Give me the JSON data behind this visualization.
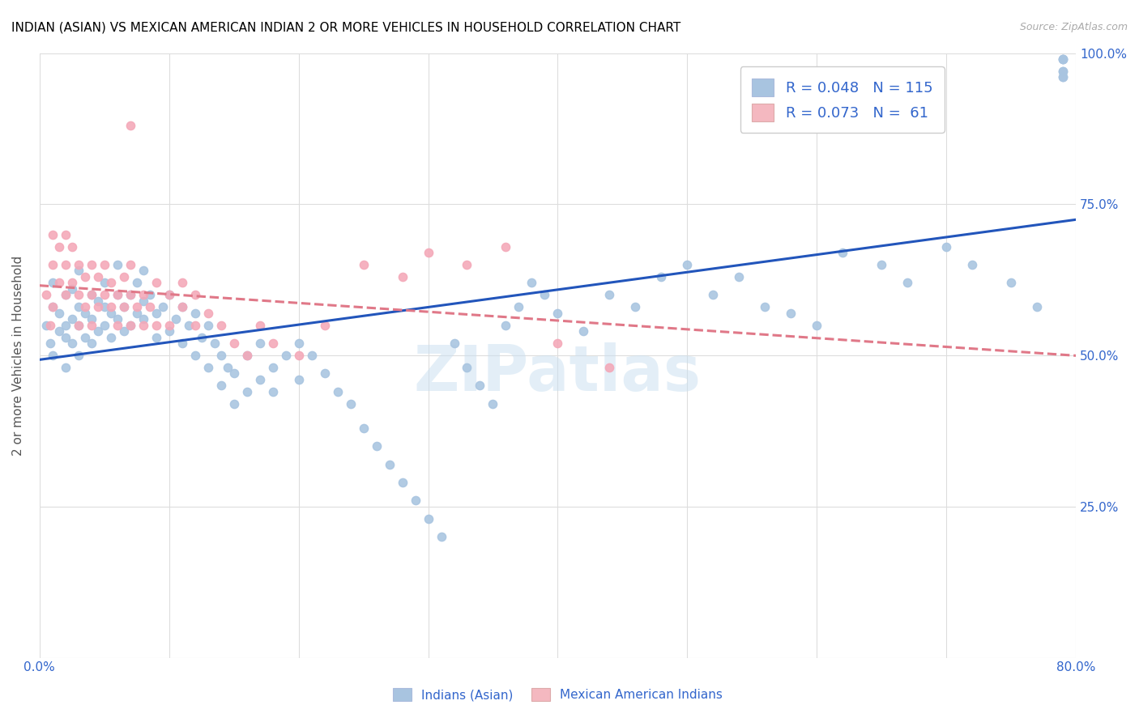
{
  "title": "INDIAN (ASIAN) VS MEXICAN AMERICAN INDIAN 2 OR MORE VEHICLES IN HOUSEHOLD CORRELATION CHART",
  "source": "Source: ZipAtlas.com",
  "ylabel": "2 or more Vehicles in Household",
  "x_min": 0.0,
  "x_max": 0.8,
  "y_min": 0.0,
  "y_max": 1.0,
  "blue_R": 0.048,
  "blue_N": 115,
  "pink_R": 0.073,
  "pink_N": 61,
  "blue_color": "#a8c4e0",
  "pink_color": "#f4a8b8",
  "blue_line_color": "#2255bb",
  "pink_line_color": "#e07888",
  "legend_blue_color": "#a8c4e0",
  "legend_pink_color": "#f4b8c0",
  "watermark": "ZIPatlas",
  "blue_scatter_x": [
    0.005,
    0.008,
    0.01,
    0.01,
    0.01,
    0.015,
    0.015,
    0.02,
    0.02,
    0.02,
    0.02,
    0.025,
    0.025,
    0.025,
    0.03,
    0.03,
    0.03,
    0.03,
    0.035,
    0.035,
    0.04,
    0.04,
    0.04,
    0.045,
    0.045,
    0.05,
    0.05,
    0.05,
    0.055,
    0.055,
    0.06,
    0.06,
    0.06,
    0.065,
    0.065,
    0.07,
    0.07,
    0.075,
    0.075,
    0.08,
    0.08,
    0.08,
    0.085,
    0.09,
    0.09,
    0.095,
    0.1,
    0.1,
    0.105,
    0.11,
    0.11,
    0.115,
    0.12,
    0.12,
    0.125,
    0.13,
    0.13,
    0.135,
    0.14,
    0.14,
    0.145,
    0.15,
    0.15,
    0.16,
    0.16,
    0.17,
    0.17,
    0.18,
    0.18,
    0.19,
    0.2,
    0.2,
    0.21,
    0.22,
    0.23,
    0.24,
    0.25,
    0.26,
    0.27,
    0.28,
    0.29,
    0.3,
    0.31,
    0.32,
    0.33,
    0.34,
    0.35,
    0.36,
    0.37,
    0.38,
    0.39,
    0.4,
    0.42,
    0.44,
    0.46,
    0.48,
    0.5,
    0.52,
    0.54,
    0.56,
    0.58,
    0.6,
    0.62,
    0.65,
    0.67,
    0.7,
    0.72,
    0.75,
    0.77,
    0.79,
    0.79,
    0.79,
    0.79,
    0.79,
    0.79,
    0.79
  ],
  "blue_scatter_y": [
    0.55,
    0.52,
    0.58,
    0.62,
    0.5,
    0.54,
    0.57,
    0.55,
    0.6,
    0.53,
    0.48,
    0.56,
    0.61,
    0.52,
    0.55,
    0.58,
    0.5,
    0.64,
    0.53,
    0.57,
    0.56,
    0.6,
    0.52,
    0.54,
    0.59,
    0.58,
    0.62,
    0.55,
    0.57,
    0.53,
    0.6,
    0.56,
    0.65,
    0.58,
    0.54,
    0.6,
    0.55,
    0.57,
    0.62,
    0.59,
    0.56,
    0.64,
    0.6,
    0.57,
    0.53,
    0.58,
    0.54,
    0.6,
    0.56,
    0.58,
    0.52,
    0.55,
    0.57,
    0.5,
    0.53,
    0.48,
    0.55,
    0.52,
    0.45,
    0.5,
    0.48,
    0.42,
    0.47,
    0.44,
    0.5,
    0.46,
    0.52,
    0.48,
    0.44,
    0.5,
    0.46,
    0.52,
    0.5,
    0.47,
    0.44,
    0.42,
    0.38,
    0.35,
    0.32,
    0.29,
    0.26,
    0.23,
    0.2,
    0.52,
    0.48,
    0.45,
    0.42,
    0.55,
    0.58,
    0.62,
    0.6,
    0.57,
    0.54,
    0.6,
    0.58,
    0.63,
    0.65,
    0.6,
    0.63,
    0.58,
    0.57,
    0.55,
    0.67,
    0.65,
    0.62,
    0.68,
    0.65,
    0.62,
    0.58,
    0.99,
    0.97,
    0.96,
    0.99,
    0.97,
    0.99,
    0.96
  ],
  "pink_scatter_x": [
    0.005,
    0.008,
    0.01,
    0.01,
    0.01,
    0.015,
    0.015,
    0.02,
    0.02,
    0.02,
    0.025,
    0.025,
    0.03,
    0.03,
    0.03,
    0.035,
    0.035,
    0.04,
    0.04,
    0.04,
    0.045,
    0.045,
    0.05,
    0.05,
    0.055,
    0.055,
    0.06,
    0.06,
    0.065,
    0.065,
    0.07,
    0.07,
    0.07,
    0.075,
    0.08,
    0.08,
    0.085,
    0.09,
    0.09,
    0.1,
    0.1,
    0.11,
    0.11,
    0.12,
    0.12,
    0.13,
    0.14,
    0.15,
    0.16,
    0.17,
    0.18,
    0.2,
    0.22,
    0.25,
    0.28,
    0.3,
    0.33,
    0.36,
    0.4,
    0.44,
    0.07
  ],
  "pink_scatter_y": [
    0.6,
    0.55,
    0.65,
    0.7,
    0.58,
    0.62,
    0.68,
    0.6,
    0.65,
    0.7,
    0.62,
    0.68,
    0.55,
    0.6,
    0.65,
    0.58,
    0.63,
    0.55,
    0.6,
    0.65,
    0.58,
    0.63,
    0.6,
    0.65,
    0.58,
    0.62,
    0.55,
    0.6,
    0.58,
    0.63,
    0.55,
    0.6,
    0.65,
    0.58,
    0.55,
    0.6,
    0.58,
    0.55,
    0.62,
    0.55,
    0.6,
    0.58,
    0.62,
    0.55,
    0.6,
    0.57,
    0.55,
    0.52,
    0.5,
    0.55,
    0.52,
    0.5,
    0.55,
    0.65,
    0.63,
    0.67,
    0.65,
    0.68,
    0.52,
    0.48,
    0.88
  ]
}
